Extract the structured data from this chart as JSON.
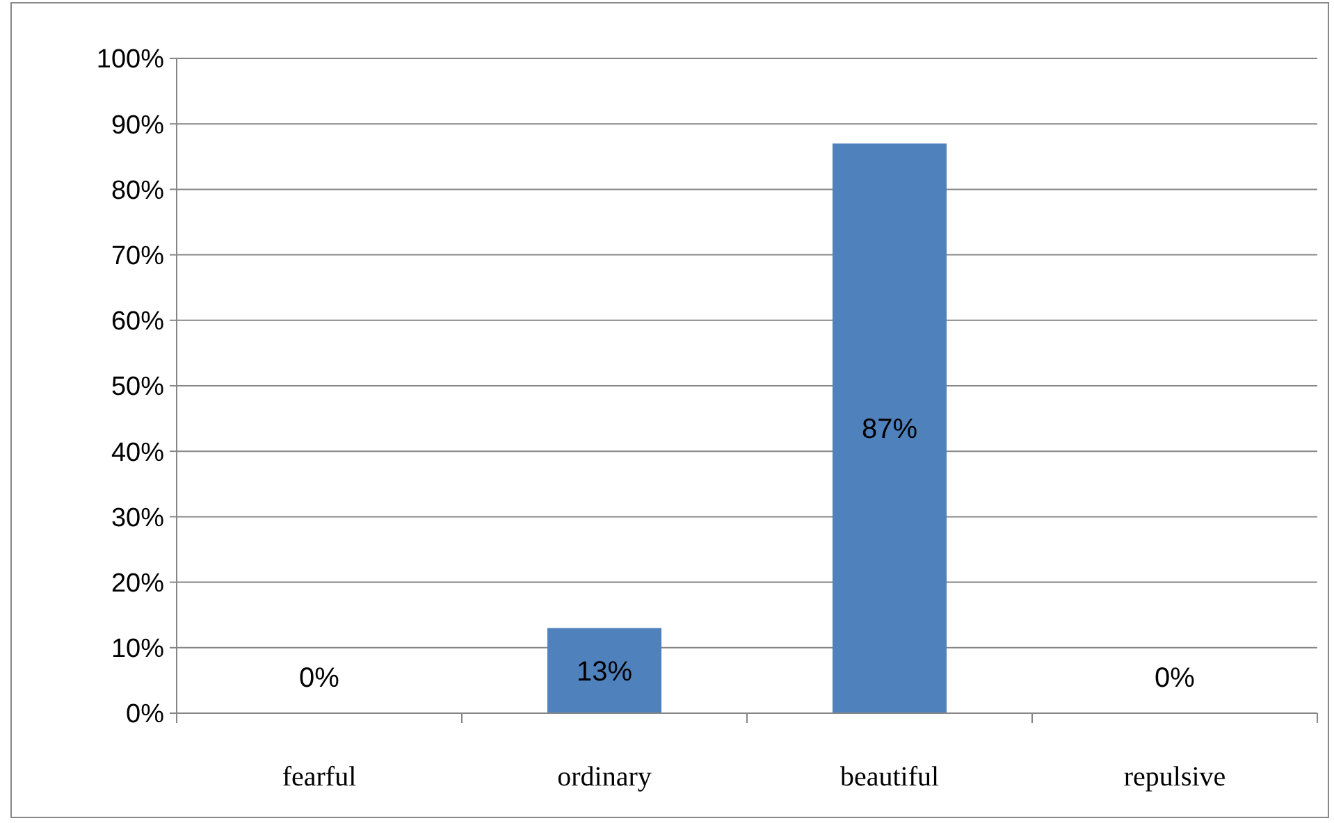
{
  "chart_data": {
    "type": "bar",
    "categories": [
      "fearful",
      "ordinary",
      "beautiful",
      "repulsive"
    ],
    "values": [
      0,
      13,
      87,
      0
    ],
    "value_labels": [
      "0%",
      "13%",
      "87%",
      "0%"
    ],
    "color": "#4f81bd",
    "ylim": [
      0,
      100
    ],
    "yticks": [
      {
        "value": 0,
        "label": "0%"
      },
      {
        "value": 10,
        "label": "10%"
      },
      {
        "value": 20,
        "label": "20%"
      },
      {
        "value": 30,
        "label": "30%"
      },
      {
        "value": 40,
        "label": "40%"
      },
      {
        "value": 50,
        "label": "50%"
      },
      {
        "value": 60,
        "label": "60%"
      },
      {
        "value": 70,
        "label": "70%"
      },
      {
        "value": 80,
        "label": "80%"
      },
      {
        "value": 90,
        "label": "90%"
      },
      {
        "value": 100,
        "label": "100%"
      }
    ],
    "grid": "y"
  }
}
